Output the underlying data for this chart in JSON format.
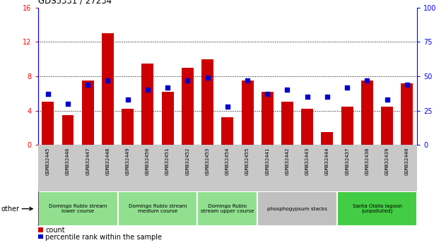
{
  "title": "GDS5331 / 27234",
  "samples": [
    "GSM832445",
    "GSM832446",
    "GSM832447",
    "GSM832448",
    "GSM832449",
    "GSM832450",
    "GSM832451",
    "GSM832452",
    "GSM832453",
    "GSM832454",
    "GSM832455",
    "GSM832441",
    "GSM832442",
    "GSM832443",
    "GSM832444",
    "GSM832437",
    "GSM832438",
    "GSM832439",
    "GSM832440"
  ],
  "counts": [
    5.0,
    3.5,
    7.5,
    13.0,
    4.2,
    9.5,
    6.2,
    9.0,
    10.0,
    3.2,
    7.5,
    6.2,
    5.0,
    4.2,
    1.5,
    4.5,
    7.5,
    4.5,
    7.2
  ],
  "percentiles": [
    37,
    30,
    44,
    47,
    33,
    40,
    42,
    47,
    49,
    28,
    47,
    37,
    40,
    35,
    35,
    42,
    47,
    33,
    44
  ],
  "ylim_left": [
    0,
    16
  ],
  "ylim_right": [
    0,
    100
  ],
  "yticks_left": [
    0,
    4,
    8,
    12,
    16
  ],
  "yticks_right": [
    0,
    25,
    50,
    75,
    100
  ],
  "bar_color": "#cc0000",
  "dot_color": "#0000cc",
  "background_color": "#ffffff",
  "label_area_color": "#c8c8c8",
  "groups": [
    {
      "label": "Domingo Rubio stream\nlower course",
      "start": 0,
      "end": 4,
      "color": "#90e090"
    },
    {
      "label": "Domingo Rubio stream\nmedium course",
      "start": 4,
      "end": 8,
      "color": "#90e090"
    },
    {
      "label": "Domingo Rubio\nstream upper course",
      "start": 8,
      "end": 11,
      "color": "#90e090"
    },
    {
      "label": "phosphogypsum stacks",
      "start": 11,
      "end": 15,
      "color": "#c0c0c0"
    },
    {
      "label": "Santa Olalla lagoon\n(unpolluted)",
      "start": 15,
      "end": 19,
      "color": "#44cc44"
    }
  ],
  "legend_count_label": "count",
  "legend_pct_label": "percentile rank within the sample",
  "other_label": "other"
}
